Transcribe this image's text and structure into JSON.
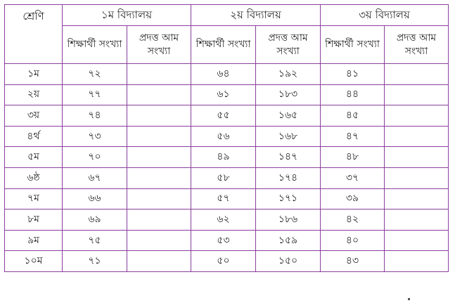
{
  "table": {
    "headers": {
      "class": "শ্রেণি",
      "schools": [
        {
          "name": "১ম বিদ্যালয়",
          "students": "শিক্ষার্থী সংখ্যা",
          "mangoes": "প্রদত্ত আম সংখ্যা"
        },
        {
          "name": "২য় বিদ্যালয়",
          "students": "শিক্ষার্থী সংখ্যা",
          "mangoes": "প্রদত্ত আম সংখ্যা"
        },
        {
          "name": "৩য় বিদ্যালয়",
          "students": "শিক্ষার্থী সংখ্যা",
          "mangoes": "প্রদত্ত আম সংখ্যা"
        }
      ]
    },
    "rows": [
      {
        "class": "১ম",
        "s1_students": "৭২",
        "s1_mangoes": "",
        "s2_students": "৬৪",
        "s2_mangoes": "১৯২",
        "s3_students": "৪১",
        "s3_mangoes": ""
      },
      {
        "class": "২য়",
        "s1_students": "৭৭",
        "s1_mangoes": "",
        "s2_students": "৬১",
        "s2_mangoes": "১৮৩",
        "s3_students": "৪৪",
        "s3_mangoes": ""
      },
      {
        "class": "৩য়",
        "s1_students": "৭৪",
        "s1_mangoes": "",
        "s2_students": "৫৫",
        "s2_mangoes": "১৬৫",
        "s3_students": "৪৫",
        "s3_mangoes": ""
      },
      {
        "class": "৪র্থ",
        "s1_students": "৭৩",
        "s1_mangoes": "",
        "s2_students": "৫৬",
        "s2_mangoes": "১৬৮",
        "s3_students": "৪৭",
        "s3_mangoes": ""
      },
      {
        "class": "৫ম",
        "s1_students": "৭০",
        "s1_mangoes": "",
        "s2_students": "৪৯",
        "s2_mangoes": "১৪৭",
        "s3_students": "৪৮",
        "s3_mangoes": ""
      },
      {
        "class": "৬ষ্ঠ",
        "s1_students": "৬৭",
        "s1_mangoes": "",
        "s2_students": "৫৮",
        "s2_mangoes": "১৭৪",
        "s3_students": "৩৭",
        "s3_mangoes": ""
      },
      {
        "class": "৭ম",
        "s1_students": "৬৬",
        "s1_mangoes": "",
        "s2_students": "৫৭",
        "s2_mangoes": "১৭১",
        "s3_students": "৩৯",
        "s3_mangoes": ""
      },
      {
        "class": "৮ম",
        "s1_students": "৬৯",
        "s1_mangoes": "",
        "s2_students": "৬২",
        "s2_mangoes": "১৮৬",
        "s3_students": "৪২",
        "s3_mangoes": ""
      },
      {
        "class": "৯ম",
        "s1_students": "৭৫",
        "s1_mangoes": "",
        "s2_students": "৫৩",
        "s2_mangoes": "১৫৯",
        "s3_students": "৪০",
        "s3_mangoes": ""
      },
      {
        "class": "১০ম",
        "s1_students": "৭১",
        "s1_mangoes": "",
        "s2_students": "৫০",
        "s2_mangoes": "১৫০",
        "s3_students": "৪৩",
        "s3_mangoes": ""
      }
    ]
  },
  "colors": {
    "border": "#8b3f9e",
    "text": "#222222"
  }
}
